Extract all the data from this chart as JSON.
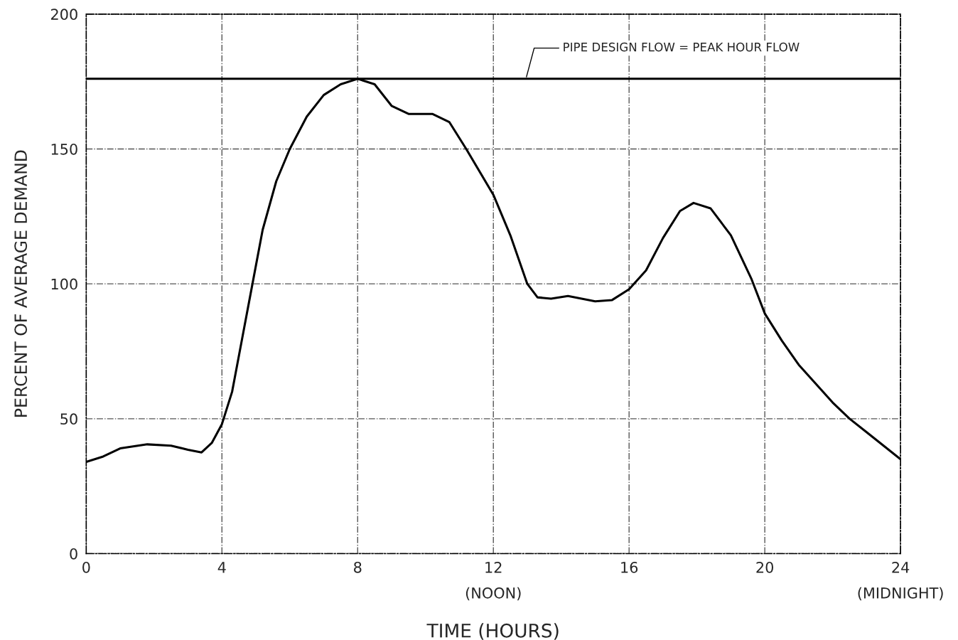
{
  "chart_data": {
    "type": "line",
    "xlabel": "TIME (HOURS)",
    "ylabel": "PERCENT OF AVERAGE DEMAND",
    "xlim": [
      0,
      24
    ],
    "ylim": [
      0,
      200
    ],
    "xticks": [
      0,
      4,
      8,
      {
        "value": 12,
        "label": "12\n(NOON)"
      },
      16,
      20,
      {
        "value": 24,
        "label": "24\n(MIDNIGHT)"
      }
    ],
    "yticks": [
      0,
      50,
      100,
      150,
      200
    ],
    "grid": true,
    "line_style": "solid",
    "marker": "none",
    "ref_lines": [
      {
        "axis": "y",
        "value": 176,
        "label": "PIPE DESIGN FLOW = PEAK HOUR FLOW",
        "color": "#000000",
        "line_style": "solid"
      }
    ],
    "x": [
      0,
      0.5,
      1,
      1.8,
      2.5,
      3.0,
      3.4,
      3.7,
      4.0,
      4.3,
      4.6,
      4.9,
      5.2,
      5.6,
      6.0,
      6.5,
      7.0,
      7.5,
      8.0,
      8.5,
      9.0,
      9.5,
      10.2,
      10.7,
      11.2,
      12.0,
      12.5,
      13.0,
      13.3,
      13.7,
      14.2,
      15.0,
      15.5,
      16.0,
      16.5,
      17.0,
      17.5,
      17.9,
      18.4,
      19.0,
      19.6,
      20.0,
      20.5,
      21.0,
      21.5,
      22.0,
      22.5,
      23.0,
      23.5,
      24.0
    ],
    "series": [
      {
        "color": "#000000",
        "values": [
          34,
          36,
          39,
          40.5,
          40,
          38.5,
          37.5,
          41,
          48,
          60,
          80,
          100,
          120,
          138,
          150,
          162,
          170,
          174,
          176,
          174,
          166,
          163,
          163,
          160,
          150,
          133,
          118,
          100,
          95,
          94.5,
          95.5,
          93.5,
          94,
          98,
          105,
          117,
          127,
          130,
          128,
          118,
          102,
          89,
          79,
          70,
          63,
          56,
          50,
          45,
          40,
          35
        ]
      }
    ]
  }
}
